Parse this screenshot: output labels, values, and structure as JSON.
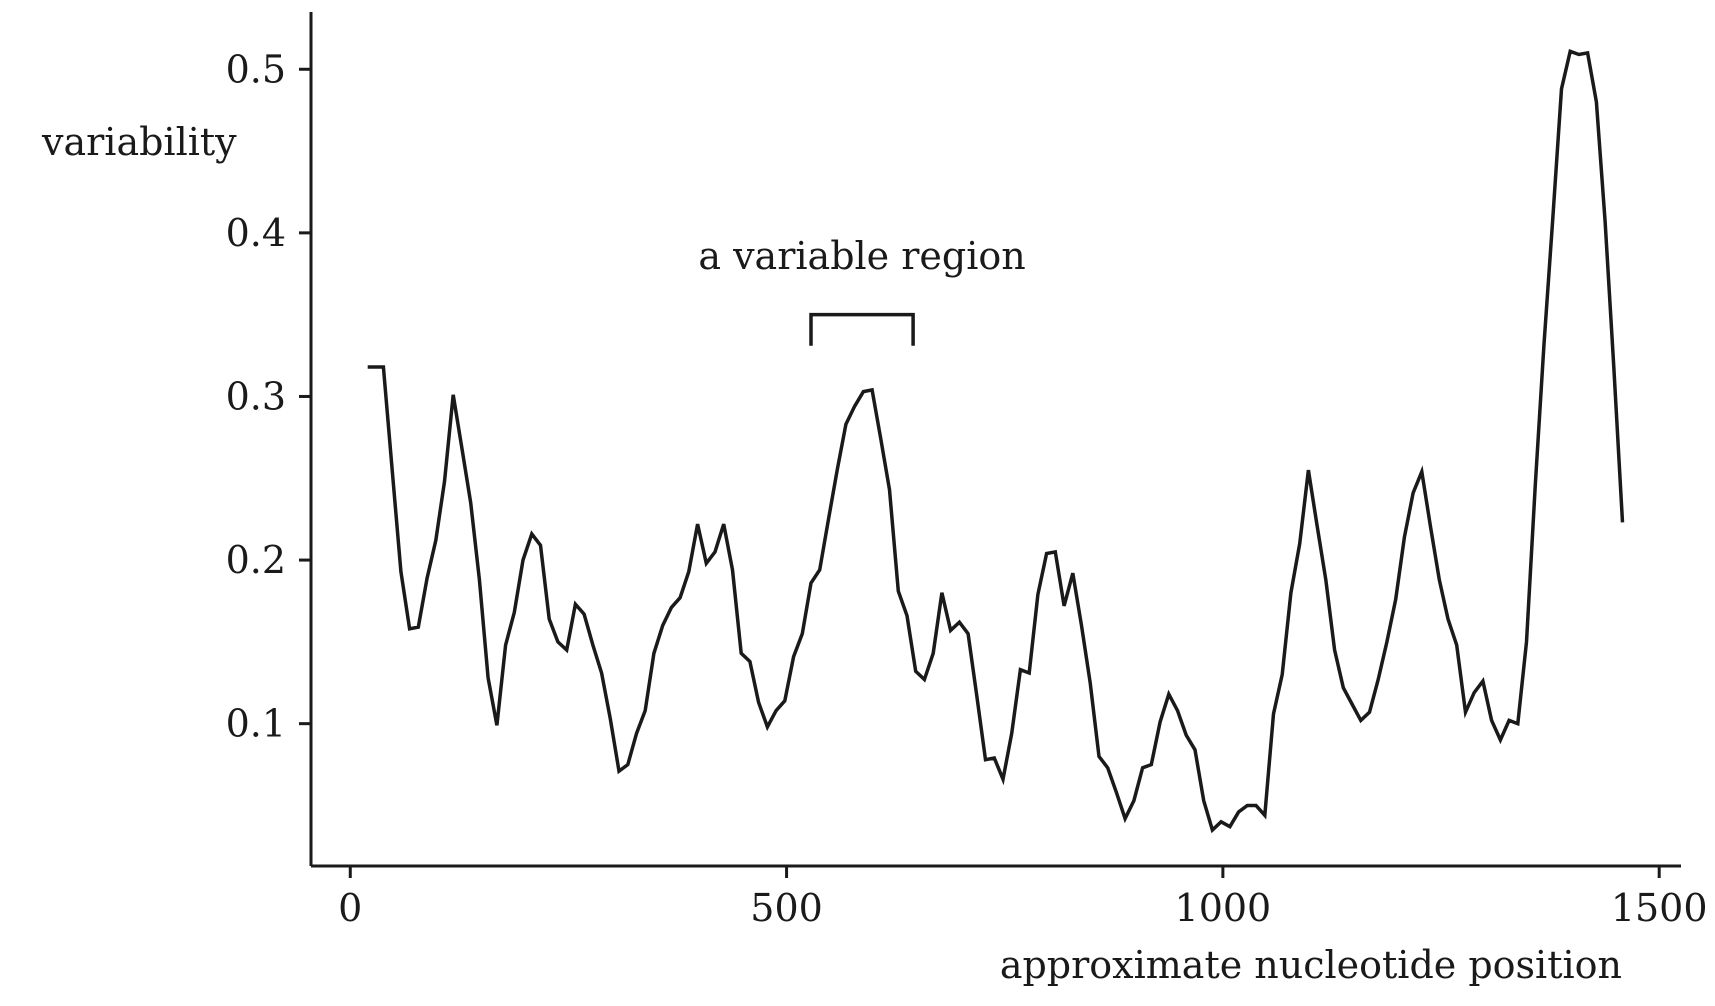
{
  "chart_data": {
    "type": "line",
    "title": "",
    "xlabel": "approximate nucleotide position",
    "ylabel": "variability",
    "xlim": [
      -45,
      1525
    ],
    "ylim": [
      0.013,
      0.535
    ],
    "xticks": [
      0,
      500,
      1000,
      1500
    ],
    "xtick_labels": [
      "0",
      "500",
      "1000",
      "1500"
    ],
    "yticks": [
      0.1,
      0.2,
      0.3,
      0.4,
      0.5
    ],
    "ytick_labels": [
      "0.1",
      "0.2",
      "0.3",
      "0.4",
      "0.5"
    ],
    "grid": false,
    "series": [
      {
        "name": "variability",
        "color": "#1a1a1a",
        "x": [
          28,
          38,
          48,
          58,
          68,
          78,
          88,
          98,
          108,
          118,
          128,
          138,
          148,
          158,
          168,
          178,
          188,
          198,
          208,
          218,
          228,
          238,
          248,
          258,
          268,
          278,
          288,
          298,
          308,
          318,
          328,
          338,
          348,
          358,
          368,
          378,
          388,
          398,
          408,
          418,
          428,
          438,
          448,
          458,
          468,
          478,
          488,
          498,
          508,
          518,
          528,
          538,
          548,
          558,
          568,
          578,
          588,
          598,
          608,
          618,
          628,
          638,
          648,
          658,
          668,
          678,
          688,
          698,
          708,
          718,
          728,
          738,
          748,
          758,
          768,
          778,
          788,
          798,
          808,
          818,
          828,
          838,
          848,
          858,
          868,
          878,
          888,
          898,
          908,
          918,
          928,
          938,
          948,
          958,
          968,
          978,
          988,
          998,
          1008,
          1018,
          1028,
          1038,
          1048,
          1058,
          1068,
          1078,
          1088,
          1098,
          1108,
          1118,
          1128,
          1138,
          1148,
          1158,
          1168,
          1178,
          1188,
          1198,
          1208,
          1218,
          1228,
          1238,
          1248,
          1258,
          1268,
          1278,
          1288,
          1298,
          1308,
          1318,
          1328,
          1338,
          1348,
          1358,
          1368,
          1378,
          1388,
          1398,
          1408,
          1418,
          1428,
          1438,
          1448,
          1458
        ],
        "values": [
          0.318,
          0.318,
          0.255,
          0.193,
          0.158,
          0.159,
          0.189,
          0.212,
          0.248,
          0.301,
          0.268,
          0.235,
          0.188,
          0.128,
          0.099,
          0.148,
          0.168,
          0.2,
          0.216,
          0.209,
          0.164,
          0.15,
          0.145,
          0.173,
          0.167,
          0.148,
          0.131,
          0.103,
          0.071,
          0.075,
          0.094,
          0.108,
          0.143,
          0.16,
          0.171,
          0.177,
          0.193,
          0.222,
          0.198,
          0.205,
          0.222,
          0.194,
          0.143,
          0.138,
          0.113,
          0.098,
          0.108,
          0.114,
          0.141,
          0.155,
          0.186,
          0.194,
          0.225,
          0.255,
          0.283,
          0.294,
          0.303,
          0.304,
          0.274,
          0.243,
          0.181,
          0.166,
          0.132,
          0.127,
          0.143,
          0.18,
          0.157,
          0.162,
          0.155,
          0.117,
          0.078,
          0.079,
          0.066,
          0.094,
          0.133,
          0.131,
          0.179,
          0.204,
          0.205,
          0.172,
          0.192,
          0.16,
          0.125,
          0.08,
          0.073,
          0.058,
          0.042,
          0.053,
          0.073,
          0.075,
          0.101,
          0.118,
          0.108,
          0.093,
          0.084,
          0.053,
          0.035,
          0.04,
          0.037,
          0.046,
          0.05,
          0.05,
          0.044,
          0.106,
          0.13,
          0.18,
          0.21,
          0.255,
          0.221,
          0.188,
          0.145,
          0.122,
          0.112,
          0.102,
          0.107,
          0.127,
          0.15,
          0.176,
          0.214,
          0.241,
          0.254,
          0.22,
          0.188,
          0.164,
          0.148,
          0.107,
          0.119,
          0.126,
          0.102,
          0.09,
          0.102,
          0.1,
          0.15,
          0.246,
          0.332,
          0.408,
          0.488,
          0.511,
          0.509,
          0.51,
          0.48,
          0.407,
          0.318,
          0.223
        ]
      }
    ],
    "annotations": [
      {
        "text": "a variable region",
        "x_start": 528,
        "x_end": 645,
        "y_bracket": 0.35,
        "y_bracket_bottom": 0.331,
        "y_text": 0.378
      }
    ]
  }
}
